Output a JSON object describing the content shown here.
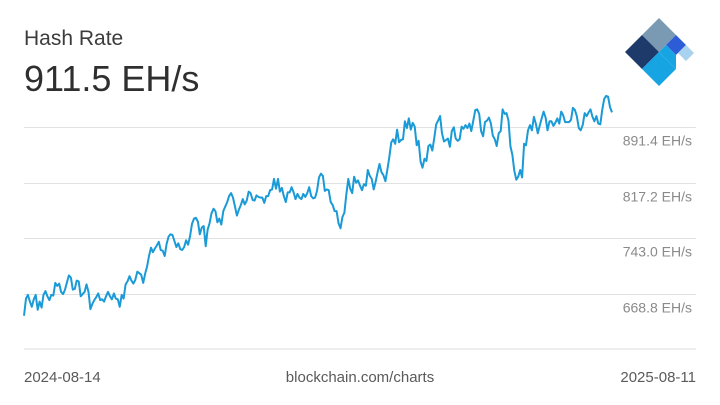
{
  "header": {
    "title": "Hash Rate",
    "current_value": "911.5 EH/s"
  },
  "logo": {
    "icon": "blockchain-logo-icon",
    "colors": [
      "#1d3a6b",
      "#7a9ab4",
      "#2d5dd6",
      "#17a4e3",
      "#a8d2ee"
    ]
  },
  "footer": {
    "start_date": "2024-08-14",
    "source": "blockchain.com/charts",
    "end_date": "2025-08-11"
  },
  "chart_data": {
    "type": "line",
    "title": "Hash Rate",
    "line_color": "#1a9ad6",
    "grid": true,
    "y_unit": "EH/s",
    "y_ticks": [
      {
        "value": 668.8,
        "label": "668.8 EH/s"
      },
      {
        "value": 743.0,
        "label": "743.0 EH/s"
      },
      {
        "value": 817.2,
        "label": "817.2 EH/s"
      },
      {
        "value": 891.4,
        "label": "891.4 EH/s"
      }
    ],
    "ylim": [
      594.6,
      911.5
    ],
    "x_range": [
      "2024-08-14",
      "2025-08-11"
    ],
    "series": [
      {
        "values": [
          639,
          662,
          667,
          658,
          651,
          661,
          667,
          647,
          658,
          650,
          667,
          672,
          665,
          660,
          667,
          666,
          683,
          679,
          682,
          671,
          668,
          674,
          684,
          693,
          690,
          674,
          675,
          686,
          685,
          665,
          668,
          671,
          681,
          671,
          648,
          655,
          660,
          664,
          669,
          660,
          661,
          658,
          665,
          671,
          665,
          661,
          669,
          662,
          661,
          651,
          667,
          662,
          681,
          685,
          692,
          686,
          682,
          687,
          698,
          696,
          694,
          683,
          695,
          705,
          719,
          730,
          724,
          729,
          733,
          738,
          727,
          726,
          719,
          735,
          745,
          748,
          747,
          739,
          731,
          736,
          728,
          727,
          731,
          740,
          734,
          745,
          762,
          769,
          770,
          765,
          748,
          757,
          759,
          732,
          754,
          763,
          776,
          782,
          779,
          764,
          769,
          761,
          779,
          785,
          791,
          799,
          803,
          797,
          785,
          773,
          781,
          787,
          795,
          788,
          793,
          805,
          803,
          794,
          793,
          800,
          798,
          797,
          797,
          790,
          799,
          799,
          807,
          808,
          822,
          809,
          822,
          805,
          810,
          799,
          791,
          804,
          804,
          811,
          804,
          795,
          802,
          797,
          795,
          802,
          798,
          803,
          811,
          799,
          796,
          797,
          806,
          824,
          829,
          826,
          806,
          808,
          807,
          791,
          787,
          779,
          779,
          763,
          756,
          771,
          777,
          801,
          822,
          809,
          803,
          825,
          817,
          820,
          813,
          807,
          815,
          813,
          834,
          826,
          822,
          808,
          818,
          831,
          842,
          831,
          827,
          819,
          834,
          851,
          871,
          875,
          869,
          888,
          871,
          874,
          875,
          899,
          890,
          903,
          888,
          897,
          892,
          867,
          873,
          845,
          837,
          849,
          846,
          866,
          868,
          860,
          876,
          895,
          900,
          906,
          883,
          872,
          874,
          876,
          865,
          886,
          891,
          876,
          873,
          875,
          892,
          889,
          894,
          890,
          896,
          886,
          900,
          914,
          915,
          909,
          886,
          879,
          898,
          900,
          904,
          896,
          880,
          875,
          866,
          883,
          886,
          915,
          909,
          910,
          900,
          866,
          854,
          833,
          821,
          825,
          834,
          824,
          869,
          867,
          887,
          894,
          887,
          905,
          896,
          883,
          893,
          903,
          912,
          904,
          887,
          899,
          899,
          893,
          897,
          903,
          896,
          912,
          907,
          898,
          898,
          898,
          901,
          917,
          914,
          906,
          890,
          887,
          894,
          910,
          906,
          911,
          915,
          905,
          899,
          906,
          896,
          895,
          914,
          929,
          933,
          932,
          918,
          911
        ]
      }
    ]
  }
}
